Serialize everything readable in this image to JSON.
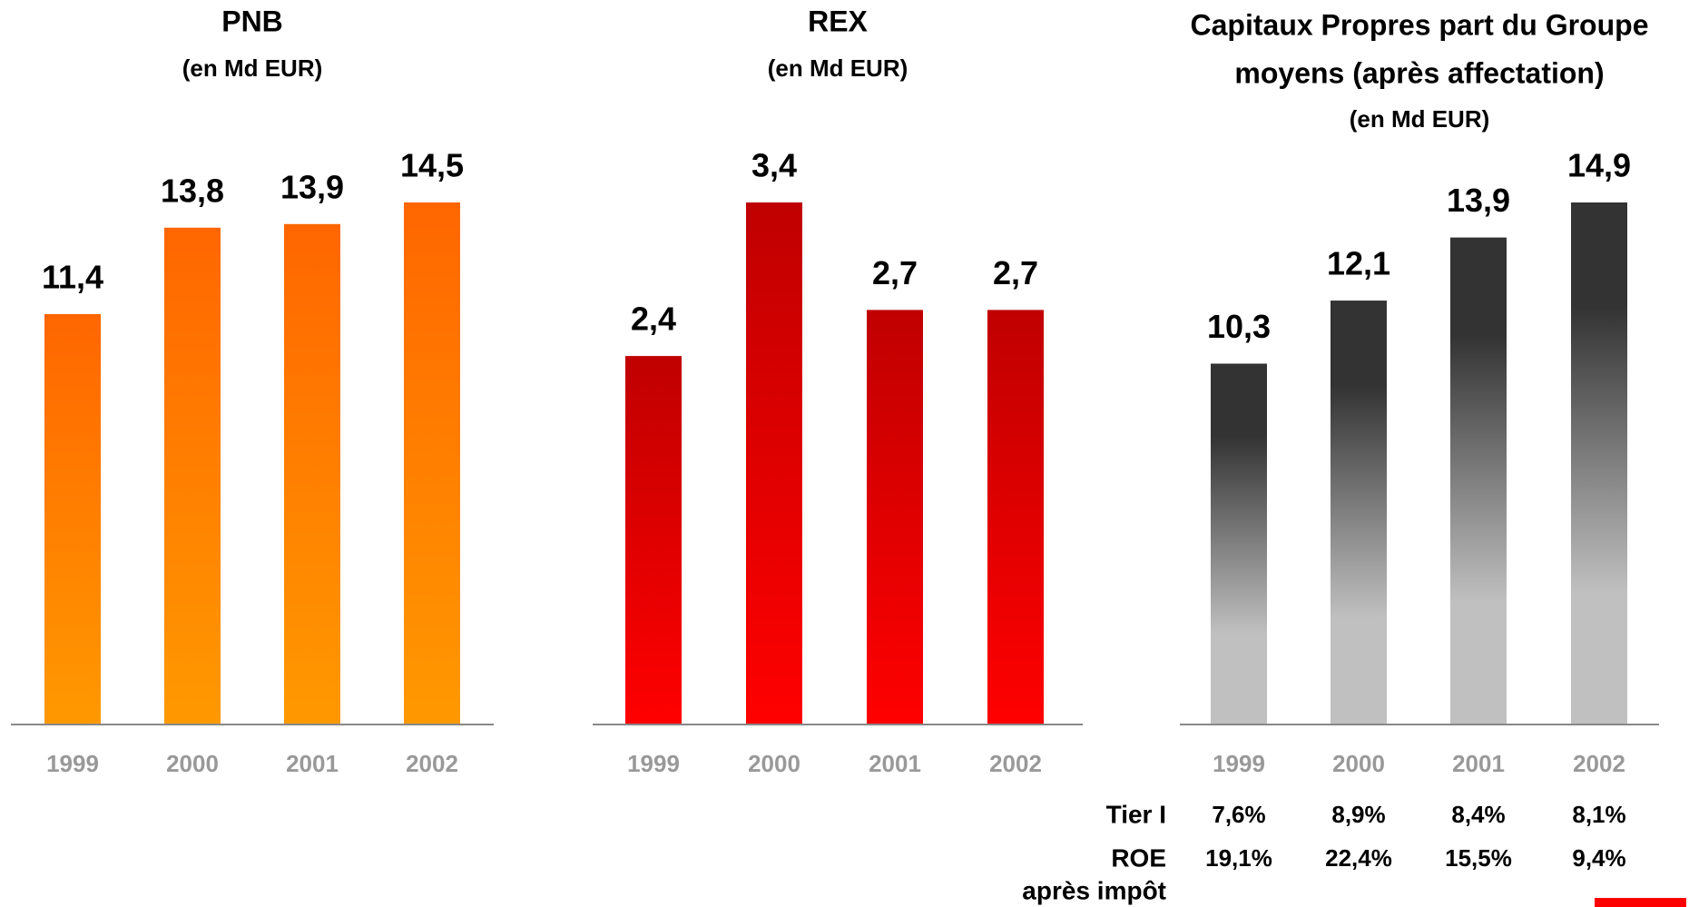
{
  "chart_data": [
    {
      "type": "bar",
      "title": "PNB",
      "subtitle": "(en Md EUR)",
      "categories": [
        "1999",
        "2000",
        "2001",
        "2002"
      ],
      "values": [
        11.4,
        13.8,
        13.9,
        14.5
      ],
      "value_labels": [
        "11,4",
        "13,8",
        "13,9",
        "14,5"
      ],
      "gradient": [
        "#ff6600",
        "#ff9900"
      ]
    },
    {
      "type": "bar",
      "title": "REX",
      "subtitle": "(en Md EUR)",
      "categories": [
        "1999",
        "2000",
        "2001",
        "2002"
      ],
      "values": [
        2.4,
        3.4,
        2.7,
        2.7
      ],
      "value_labels": [
        "2,4",
        "3,4",
        "2,7",
        "2,7"
      ],
      "gradient": [
        "#c00000",
        "#ff0000"
      ]
    },
    {
      "type": "bar",
      "title": [
        "Capitaux Propres part du Groupe",
        "moyens (après affectation)"
      ],
      "subtitle": "(en Md EUR)",
      "categories": [
        "1999",
        "2000",
        "2001",
        "2002"
      ],
      "values": [
        10.3,
        12.1,
        13.9,
        14.9
      ],
      "value_labels": [
        "10,3",
        "12,1",
        "13,9",
        "14,9"
      ],
      "gradient": [
        "#333333",
        "#c0c0c0"
      ],
      "table": [
        {
          "label": [
            "Tier I"
          ],
          "cells": [
            "7,6%",
            "8,9%",
            "8,4%",
            "8,1%"
          ]
        },
        {
          "label": [
            "ROE",
            "après impôt"
          ],
          "cells": [
            "19,1%",
            "22,4%",
            "15,5%",
            "9,4%"
          ]
        }
      ]
    }
  ]
}
